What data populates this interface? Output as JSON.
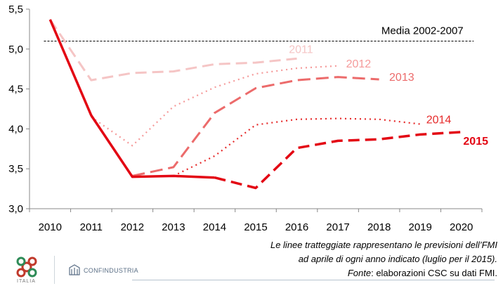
{
  "chart_data": {
    "type": "line",
    "x": [
      2010,
      2011,
      2012,
      2013,
      2014,
      2015,
      2016,
      2017,
      2018,
      2019,
      2020
    ],
    "ylim": [
      3.0,
      5.5
    ],
    "yticks": [
      3.0,
      3.5,
      4.0,
      4.5,
      5.0,
      5.5
    ],
    "ytick_labels": [
      "3,0",
      "3,5",
      "4,0",
      "4,5",
      "5,0",
      "5,5"
    ],
    "grid": false,
    "reference_line": {
      "label": "Media 2002-2007",
      "value": 5.1
    },
    "series": [
      {
        "name": "2011",
        "color": "#f5c5c5",
        "width": 3.0,
        "dash": "16,8",
        "points": [
          [
            2010,
            5.37
          ],
          [
            2011,
            4.61
          ],
          [
            2012,
            4.7
          ],
          [
            2013,
            4.72
          ],
          [
            2014,
            4.81
          ],
          [
            2015,
            4.83
          ],
          [
            2016,
            4.88
          ]
        ]
      },
      {
        "name": "2012",
        "color": "#f59a9a",
        "width": 2.2,
        "dash": "2,5",
        "points": [
          [
            2011,
            4.15
          ],
          [
            2012,
            3.79
          ],
          [
            2013,
            4.28
          ],
          [
            2014,
            4.52
          ],
          [
            2015,
            4.69
          ],
          [
            2016,
            4.76
          ],
          [
            2017,
            4.79
          ]
        ]
      },
      {
        "name": "2013",
        "color": "#ec6b6b",
        "width": 3.0,
        "dash": "18,8",
        "points": [
          [
            2012,
            3.41
          ],
          [
            2013,
            3.52
          ],
          [
            2014,
            4.2
          ],
          [
            2015,
            4.51
          ],
          [
            2016,
            4.61
          ],
          [
            2017,
            4.65
          ],
          [
            2018,
            4.62
          ]
        ]
      },
      {
        "name": "2014",
        "color": "#e62b2b",
        "width": 2.2,
        "dash": "2,5",
        "points": [
          [
            2013,
            3.41
          ],
          [
            2014,
            3.66
          ],
          [
            2015,
            4.05
          ],
          [
            2016,
            4.12
          ],
          [
            2017,
            4.13
          ],
          [
            2018,
            4.12
          ],
          [
            2019,
            4.06
          ]
        ]
      },
      {
        "name": "2015",
        "color": "#e30613",
        "width": 3.5,
        "dash": "",
        "points": [
          [
            2010,
            5.37
          ],
          [
            2011,
            4.17
          ],
          [
            2012,
            3.4
          ],
          [
            2013,
            3.41
          ],
          [
            2014,
            3.39
          ]
        ]
      },
      {
        "name": "",
        "color": "#e30613",
        "width": 3.5,
        "dash": "16,8",
        "points": [
          [
            2014,
            3.39
          ],
          [
            2015,
            3.26
          ],
          [
            2016,
            3.76
          ],
          [
            2017,
            3.85
          ],
          [
            2018,
            3.87
          ],
          [
            2019,
            3.93
          ],
          [
            2020,
            3.96
          ]
        ]
      }
    ]
  },
  "notes": {
    "line1": "Le linee tratteggiate rappresentano le previsioni dell’FMI",
    "line2": "ad aprile di ogni anno indicato (luglio per il 2015).",
    "line3_label": "Fonte",
    "line3_rest": ": elaborazioni CSC su dati FMI."
  },
  "logos": {
    "seal_caption": "ITALIA",
    "confindustria": "CONFINDUSTRIA"
  }
}
